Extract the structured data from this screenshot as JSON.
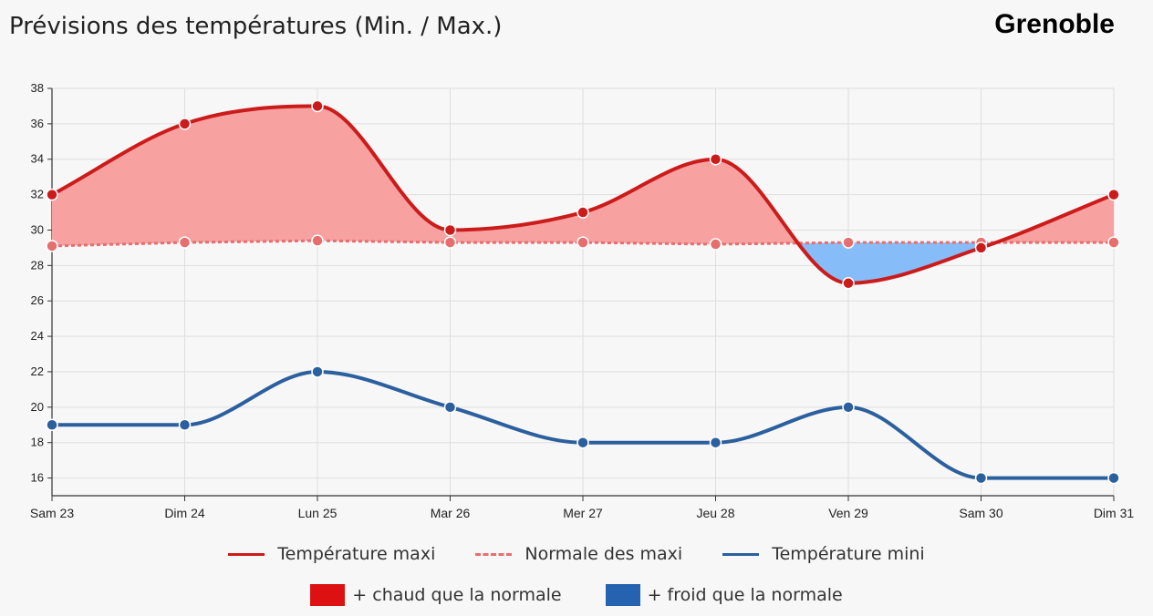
{
  "header": {
    "title": "Prévisions des températures (Min. / Max.)",
    "city": "Grenoble"
  },
  "colors": {
    "max": "#cc1b1b",
    "normal": "#e76e6e",
    "min": "#2c5f9e",
    "warm_fill": "#f7a1a1",
    "cold_fill": "#86bdf8",
    "warm_legend": "#dd1111",
    "cold_legend": "#2562b0"
  },
  "chart_data": {
    "type": "line",
    "categories": [
      "Sam 23",
      "Dim 24",
      "Lun 25",
      "Mar 26",
      "Mer 27",
      "Jeu 28",
      "Ven 29",
      "Sam 30",
      "Dim 31"
    ],
    "series": [
      {
        "name": "Température maxi",
        "values": [
          32,
          36,
          37,
          30,
          31,
          34,
          27,
          29,
          32
        ]
      },
      {
        "name": "Normale des maxi",
        "values": [
          29.1,
          29.3,
          29.4,
          29.3,
          29.3,
          29.2,
          29.3,
          29.3,
          29.3
        ]
      },
      {
        "name": "Température mini",
        "values": [
          19,
          19,
          22,
          20,
          18,
          18,
          20,
          16,
          16
        ]
      }
    ],
    "yticks": [
      16,
      18,
      20,
      22,
      24,
      26,
      28,
      30,
      32,
      34,
      36,
      38
    ],
    "ylim": [
      15,
      38
    ],
    "grid": true,
    "legend_position": "bottom"
  },
  "legend": {
    "max_label": "Température maxi",
    "normal_label": "Normale des maxi",
    "min_label": "Température mini",
    "warm_label": "+ chaud que la normale",
    "cold_label": "+ froid que la normale"
  }
}
